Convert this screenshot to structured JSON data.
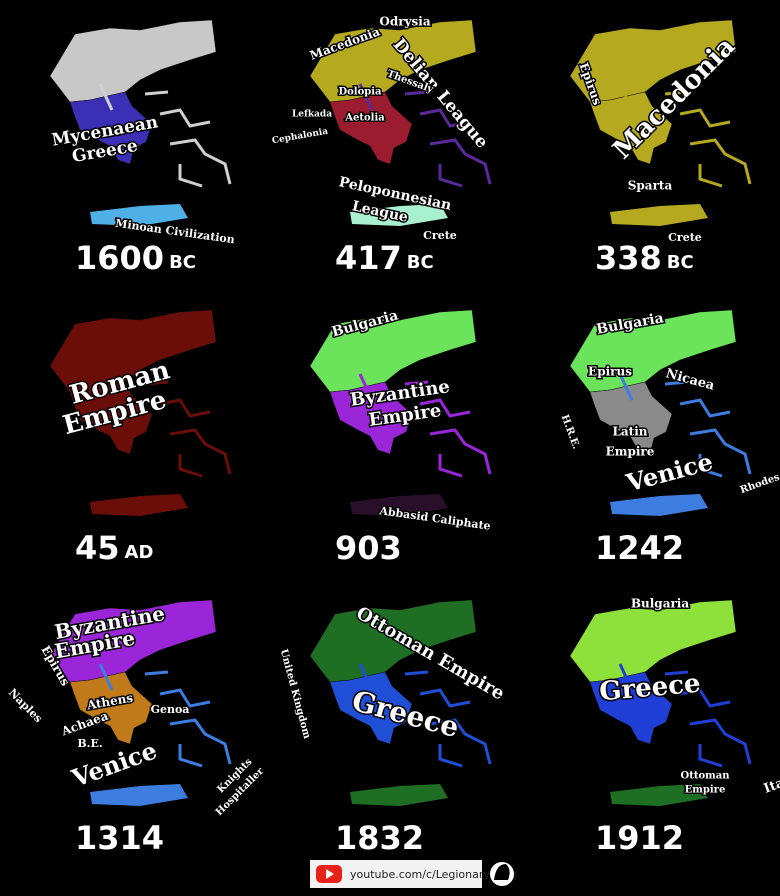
{
  "panels": [
    {
      "year": "1600",
      "era": "BC",
      "labels": [
        "Mycenaean",
        "Greece",
        "Minoan Civilization"
      ]
    },
    {
      "year": "417",
      "era": "BC",
      "labels": [
        "Macedonia",
        "Odrysia",
        "Delian League",
        "Thessaly",
        "Dolopia",
        "Lefkada",
        "Aetolia",
        "Cephalonia",
        "Peloponnesian",
        "League",
        "Crete"
      ]
    },
    {
      "year": "338",
      "era": "BC",
      "labels": [
        "Epirus",
        "Macedonia",
        "Sparta",
        "Crete"
      ]
    },
    {
      "year": "45",
      "era": "AD",
      "labels": [
        "Roman",
        "Empire"
      ]
    },
    {
      "year": "903",
      "labels": [
        "Bulgaria",
        "Byzantine",
        "Empire",
        "Abbasid Caliphate"
      ]
    },
    {
      "year": "1242",
      "labels": [
        "Bulgaria",
        "Epirus",
        "Nicaea",
        "H.R.E.",
        "Latin",
        "Empire",
        "Venice",
        "Rhodes"
      ]
    },
    {
      "year": "1314",
      "labels": [
        "Byzantine",
        "Empire",
        "Epirus",
        "Naples",
        "Athens",
        "Achaea",
        "B.E.",
        "Genoa",
        "Venice",
        "Knights",
        "Hospitaller"
      ]
    },
    {
      "year": "1832",
      "labels": [
        "Ottoman Empire",
        "United Kingdom",
        "Greece"
      ]
    },
    {
      "year": "1912",
      "labels": [
        "Bulgaria",
        "Greece",
        "Ottoman",
        "Empire",
        "Italy"
      ]
    }
  ],
  "footer": {
    "url": "youtube.com/c/LegionaryAtlas"
  }
}
